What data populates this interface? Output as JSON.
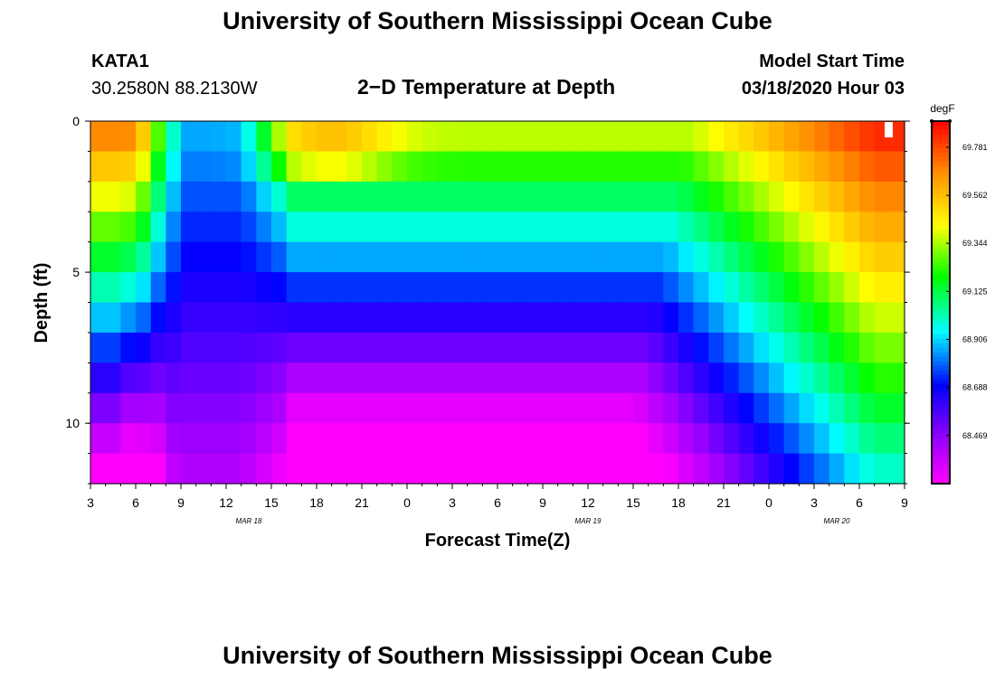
{
  "header": {
    "title_top": "University of Southern Mississippi Ocean Cube",
    "title_bottom": "University of Southern Mississippi Ocean Cube",
    "station": "KATA1",
    "coords": "30.2580N 88.2130W",
    "plot_title": "2−D Temperature at Depth",
    "model_start_label": "Model Start Time",
    "model_start_value": "03/18/2020 Hour 03"
  },
  "chart_data": {
    "type": "heatmap",
    "title": "2−D Temperature at Depth",
    "xlabel": "Forecast Time(Z)",
    "ylabel": "Depth (ft)",
    "x_ticks": [
      "3",
      "6",
      "9",
      "12",
      "15",
      "18",
      "21",
      "0",
      "3",
      "6",
      "9",
      "12",
      "15",
      "18",
      "21",
      "0",
      "3",
      "6",
      "9"
    ],
    "date_labels": [
      {
        "label": "MAR 18",
        "tick_index": 3.5
      },
      {
        "label": "MAR 19",
        "tick_index": 11
      },
      {
        "label": "MAR 20",
        "tick_index": 16.5
      }
    ],
    "y_ticks": [
      "0",
      "5",
      "10"
    ],
    "ylim": [
      0,
      12
    ],
    "hours": 54,
    "layer_depths_ft": [
      0.5,
      1.5,
      2.5,
      3.5,
      4.5,
      5.5,
      6.5,
      7.5,
      8.5,
      9.5,
      10.5,
      11.5
    ],
    "colorbar": {
      "unit": "degF",
      "min": 68.25,
      "max": 69.9,
      "ticks": [
        "69.781",
        "69.562",
        "69.344",
        "69.125",
        "68.906",
        "68.688",
        "68.469"
      ]
    }
  },
  "colors": {
    "text": "#000000",
    "background": "#ffffff"
  }
}
